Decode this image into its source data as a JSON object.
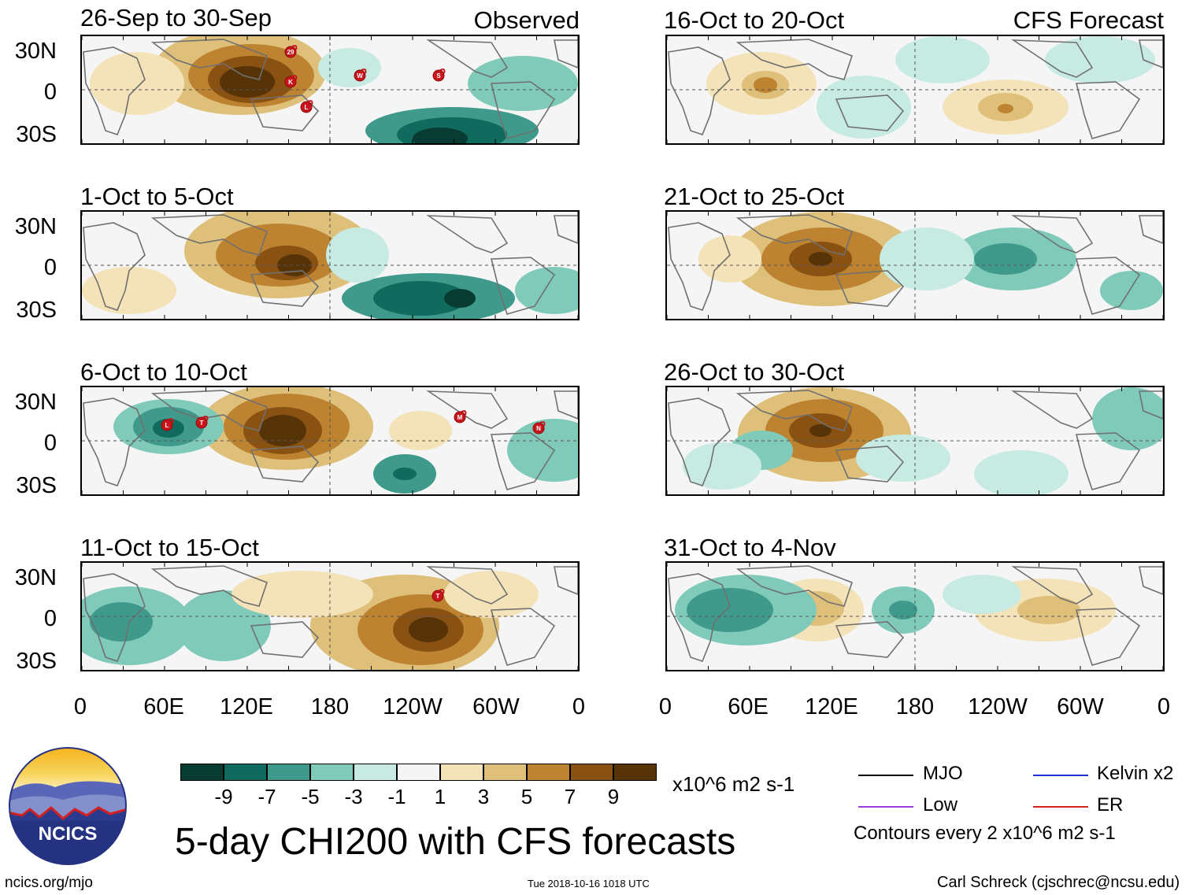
{
  "header": {
    "observed_label": "Observed",
    "forecast_label": "CFS Forecast"
  },
  "panels": {
    "observed": [
      {
        "title": "26-Sep to 30-Sep",
        "storms": [
          "29",
          "K",
          "L",
          "W",
          "S"
        ]
      },
      {
        "title": "1-Oct to 5-Oct",
        "storms": []
      },
      {
        "title": "6-Oct to 10-Oct",
        "storms": [
          "L",
          "T",
          "M",
          "N"
        ]
      },
      {
        "title": "11-Oct to 15-Oct",
        "storms": [
          "T"
        ]
      }
    ],
    "forecast": [
      {
        "title": "16-Oct to 20-Oct"
      },
      {
        "title": "21-Oct to 25-Oct"
      },
      {
        "title": "26-Oct to 30-Oct"
      },
      {
        "title": "31-Oct to 4-Nov"
      }
    ]
  },
  "axes": {
    "lat_labels": [
      "30N",
      "0",
      "30S"
    ],
    "lon_labels": [
      "0",
      "60E",
      "120E",
      "180",
      "120W",
      "60W",
      "0"
    ]
  },
  "colorbar": {
    "unit": "x10^6 m2 s-1",
    "labels": [
      "-9",
      "-7",
      "-5",
      "-3",
      "-1",
      "1",
      "3",
      "5",
      "7",
      "9"
    ],
    "colors": [
      "#083b32",
      "#106a5e",
      "#3f9a8c",
      "#7fcab9",
      "#c7ebe3",
      "#f5f5f5",
      "#f4e3b8",
      "#dfc07b",
      "#bd8330",
      "#8a5212",
      "#573408"
    ]
  },
  "legend": {
    "mjo": "MJO",
    "kelvin": "Kelvin x2",
    "low": "Low",
    "er": "ER",
    "contours": "Contours every 2 x10^6 m2 s-1",
    "colors": {
      "mjo": "#000000",
      "kelvin": "#1f2fd0",
      "low": "#9d3fe0",
      "er": "#d2231f"
    }
  },
  "title": "5-day CHI200 with CFS forecasts",
  "logo_text": "NCICS",
  "footer": {
    "url": "ncics.org/mjo",
    "timestamp": "Tue 2018-10-16 1018 UTC",
    "author": "Carl Schreck (cjschrec@ncsu.edu)"
  }
}
